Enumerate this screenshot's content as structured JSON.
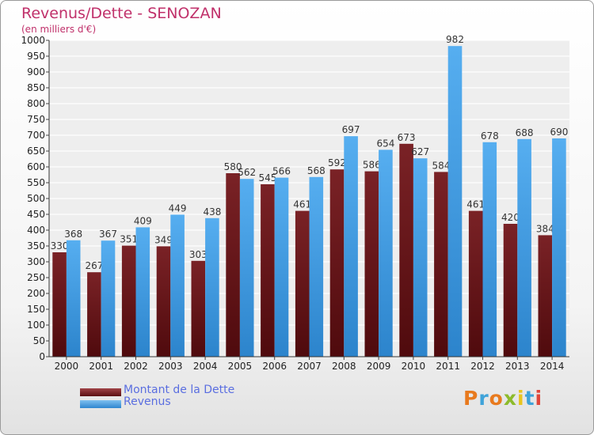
{
  "title": "Revenus/Dette - SENOZAN",
  "subtitle": "(en milliers d'€)",
  "colors": {
    "dette": "#6b1518",
    "revenus": "#3f97dd",
    "title": "#c0306a",
    "legend_text": "#5a6ee0"
  },
  "legend": [
    {
      "label": "Montant de la Dette",
      "color": "#6b1518"
    },
    {
      "label": "Revenus",
      "color": "#3f97dd"
    }
  ],
  "logo": {
    "text": "Proxiti",
    "colors": [
      "#e87a1e",
      "#3fa3d9",
      "#e87a1e",
      "#8dbb2b",
      "#e8c51e",
      "#3fa3d9",
      "#e0453a"
    ]
  },
  "chart_data": {
    "type": "bar",
    "title": "Revenus/Dette - SENOZAN",
    "subtitle": "(en milliers d'€)",
    "categories": [
      "2000",
      "2001",
      "2002",
      "2003",
      "2004",
      "2005",
      "2006",
      "2007",
      "2008",
      "2009",
      "2010",
      "2011",
      "2012",
      "2013",
      "2014"
    ],
    "series": [
      {
        "name": "Montant de la Dette",
        "values": [
          330,
          267,
          351,
          349,
          303,
          580,
          545,
          461,
          592,
          586,
          673,
          584,
          461,
          420,
          384
        ]
      },
      {
        "name": "Revenus",
        "values": [
          368,
          367,
          409,
          449,
          438,
          562,
          566,
          568,
          697,
          654,
          627,
          982,
          678,
          688,
          690
        ]
      }
    ],
    "data_labels": {
      "Montant de la Dette": [
        "330",
        "267",
        "351",
        "349",
        "303",
        "580",
        "545",
        "461",
        "592",
        "586",
        "673",
        "584",
        "461",
        "420",
        "384"
      ],
      "Revenus": [
        "368",
        "367",
        "409",
        "449",
        "438",
        "562",
        "566",
        "568",
        "697",
        "654",
        "627",
        "982",
        "678",
        "688",
        "690"
      ]
    },
    "ylim": [
      0,
      1000
    ],
    "yticks": [
      0,
      50,
      100,
      150,
      200,
      250,
      300,
      350,
      400,
      450,
      500,
      550,
      600,
      650,
      700,
      750,
      800,
      850,
      900,
      950,
      1000
    ],
    "grid": true,
    "legend_position": "bottom-left"
  }
}
